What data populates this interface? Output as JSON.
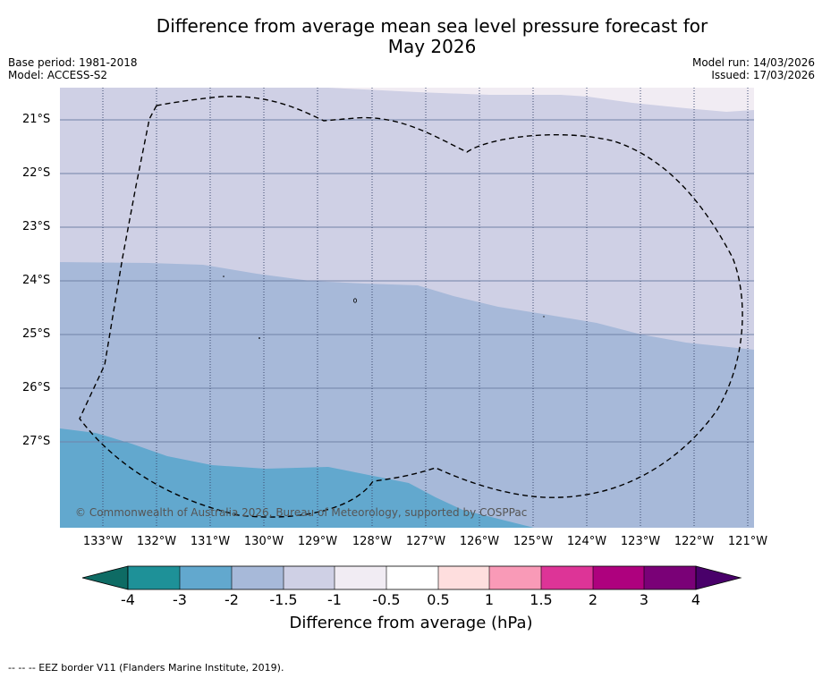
{
  "title_line1": "Difference from average mean sea level pressure forecast for",
  "title_line2": "May 2026",
  "base_period": "Base period: 1981-2018",
  "model": "Model: ACCESS-S2",
  "model_run": "Model run: 14/03/2026",
  "issued": "Issued: 17/03/2026",
  "copyright": "© Commonwealth of Australia 2026, Bureau of Meteorology, supported by COSPPac",
  "lat_labels": [
    "21°S",
    "22°S",
    "23°S",
    "24°S",
    "25°S",
    "26°S",
    "27°S"
  ],
  "lon_labels": [
    "133°W",
    "132°W",
    "131°W",
    "130°W",
    "129°W",
    "128°W",
    "127°W",
    "126°W",
    "125°W",
    "124°W",
    "123°W",
    "122°W",
    "121°W"
  ],
  "colorbar": {
    "ticks": [
      "-4",
      "-3",
      "-2",
      "-1.5",
      "-1",
      "-0.5",
      "0.5",
      "1",
      "1.5",
      "2",
      "3",
      "4"
    ],
    "colors": [
      "#0e6b64",
      "#1e9198",
      "#62a8ce",
      "#a7b9d9",
      "#cfd0e5",
      "#f1ecf3",
      "#ffffff",
      "#fedede",
      "#f99ab7",
      "#dd3497",
      "#ae017e",
      "#7a0177",
      "#49006a"
    ],
    "label": "Difference from average (hPa)"
  },
  "legend_text": "--  --  -- EEZ border V11 (Flanders Marine Institute, 2019).",
  "colors": {
    "band_neg1": "#cfd0e5",
    "band_neg0_5": "#f1ecf3",
    "band_neg1_5": "#a7b9d9",
    "band_neg2": "#62a8ce",
    "grid": "#5a6a90"
  }
}
